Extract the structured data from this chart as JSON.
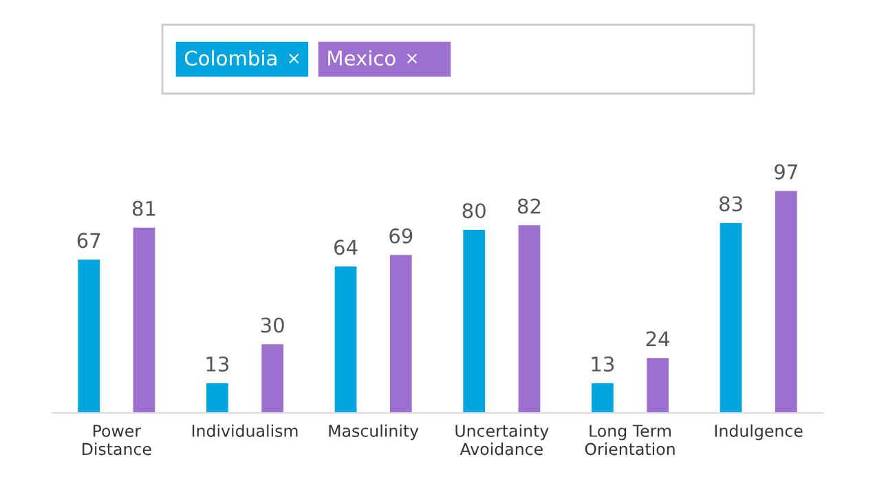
{
  "chart_data": {
    "type": "bar",
    "categories": [
      "Power\nDistance",
      "Individualism",
      "Masculinity",
      "Uncertainty\nAvoidance",
      "Long Term\nOrientation",
      "Indulgence"
    ],
    "series": [
      {
        "name": "Colombia",
        "color": "#00a5e0",
        "values": [
          67,
          13,
          64,
          80,
          13,
          83
        ]
      },
      {
        "name": "Mexico",
        "color": "#9d6fd1",
        "values": [
          81,
          30,
          69,
          82,
          24,
          97
        ]
      }
    ],
    "data_labels": true,
    "legend": "top",
    "grid": false,
    "annotations": [
      "×",
      "×"
    ]
  }
}
